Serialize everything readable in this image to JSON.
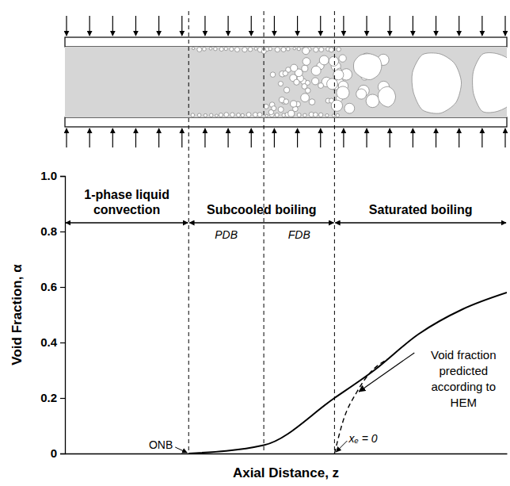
{
  "chart_data": {
    "type": "line",
    "x_label": "Axial Distance, z",
    "y_label": "Void Fraction, α",
    "xlim": [
      0,
      100
    ],
    "ylim": [
      0,
      1
    ],
    "yticks": [
      0,
      0.2,
      0.4,
      0.6,
      0.8,
      {
        "value": 1,
        "label": "1.0"
      }
    ],
    "tick_labels": "y",
    "grid": false,
    "series": [
      {
        "x": [
          28,
          45,
          61,
          70,
          80,
          90,
          100
        ],
        "values": [
          0,
          0.03,
          0.2,
          0.3,
          0.43,
          0.52,
          0.58
        ],
        "color": "#000000",
        "line_style": "solid"
      },
      {
        "x": [
          61,
          63,
          66,
          69,
          73
        ],
        "values": [
          0,
          0.12,
          0.22,
          0.29,
          0.34
        ],
        "color": "#000000",
        "line_style": "dashed"
      }
    ],
    "boundaries": [
      28,
      45,
      61
    ],
    "regions": [
      {
        "label": "1-phase liquid convection",
        "range": [
          0,
          28
        ]
      },
      {
        "label": "Subcooled boiling",
        "range": [
          28,
          61
        ]
      },
      {
        "label": "Saturated boiling",
        "range": [
          61,
          100
        ]
      }
    ],
    "subregions": [
      {
        "label": "PDB",
        "range": [
          28,
          45
        ]
      },
      {
        "label": "FDB",
        "range": [
          45,
          61
        ]
      }
    ],
    "annotations": [
      {
        "text": "ONB",
        "x": 28,
        "y": 0
      },
      {
        "text": "xₑ = 0",
        "x": 61,
        "y": 0
      },
      {
        "text": "Void fraction predicted according to HEM",
        "x": 66,
        "y": 0.22
      }
    ]
  }
}
